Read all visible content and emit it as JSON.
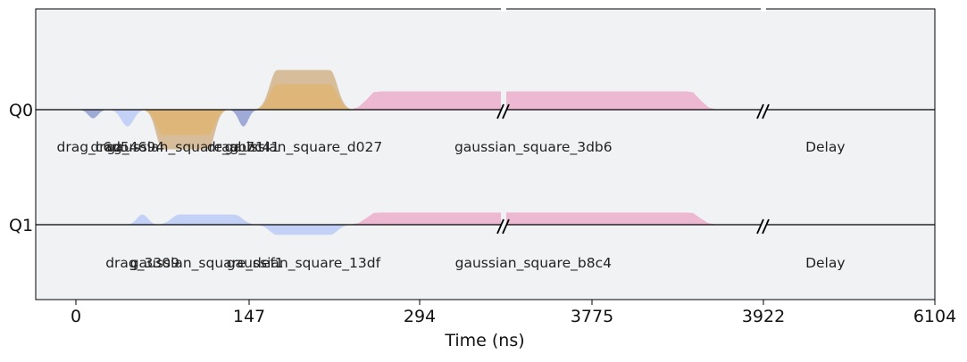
{
  "chart_data": {
    "type": "area",
    "xlabel": "Time (ns)",
    "x_ticks": [
      "0",
      "147",
      "294",
      "3775",
      "3922",
      "6104"
    ],
    "channels": [
      "Q0",
      "Q1"
    ],
    "time_breaks": 2,
    "pulses": [
      {
        "channel": "Q0",
        "label": "drag_c6d5",
        "start": 0,
        "end": 40,
        "amp": -0.17,
        "shape": "gauss",
        "color": "#9aa6d4"
      },
      {
        "channel": "Q0",
        "label": "drag_4694",
        "start": 35,
        "end": 85,
        "amp": -0.33,
        "shape": "gauss",
        "color": "#c1cff6"
      },
      {
        "channel": "Q0",
        "label": "gaussian_square_abb1",
        "start": 80,
        "end": 175,
        "amp": -0.78,
        "shape": "square",
        "color": "#d5b995"
      },
      {
        "channel": "Q0",
        "label": "gaussian_square_abb1",
        "start": 80,
        "end": 175,
        "amp": -0.5,
        "shape": "square",
        "color": "#deb577"
      },
      {
        "channel": "Q0",
        "label": "drag_7c41",
        "start": 175,
        "end": 215,
        "amp": -0.33,
        "shape": "gauss",
        "color": "#9aa6d4"
      },
      {
        "channel": "Q0",
        "label": "gaussian_square_d027",
        "start": 210,
        "end": 320,
        "amp": 0.78,
        "shape": "square",
        "color": "#d5b995"
      },
      {
        "channel": "Q0",
        "label": "gaussian_square_d027",
        "start": 210,
        "end": 320,
        "amp": 0.5,
        "shape": "square",
        "color": "#deb577"
      },
      {
        "channel": "Q0",
        "label": "gaussian_square_3db6",
        "start": 320,
        "end": 745,
        "amp": 0.36,
        "shape": "square",
        "color": "#ebb4d0"
      },
      {
        "channel": "Q0",
        "label": "Delay",
        "start": 745,
        "end": 1000,
        "amp": 0,
        "shape": "none",
        "color": "#000000"
      },
      {
        "channel": "Q1",
        "label": "drag_3309",
        "start": 55,
        "end": 100,
        "amp": 0.2,
        "shape": "gauss",
        "color": "#c1cff6"
      },
      {
        "channel": "Q1",
        "label": "gaussian_square_def1",
        "start": 95,
        "end": 210,
        "amp": 0.2,
        "shape": "square",
        "color": "#c1cff6"
      },
      {
        "channel": "Q1",
        "label": "gaussian_square_13df",
        "start": 210,
        "end": 320,
        "amp": -0.2,
        "shape": "square",
        "color": "#c1cff6"
      },
      {
        "channel": "Q1",
        "label": "gaussian_square_b8c4",
        "start": 320,
        "end": 745,
        "amp": 0.24,
        "shape": "square",
        "color": "#ebb4d0"
      },
      {
        "channel": "Q1",
        "label": "Delay",
        "start": 745,
        "end": 1000,
        "amp": 0,
        "shape": "none",
        "color": "#000000"
      }
    ]
  },
  "colors": {
    "plot_background": "#f1f2f4",
    "baseline": "#000000"
  }
}
